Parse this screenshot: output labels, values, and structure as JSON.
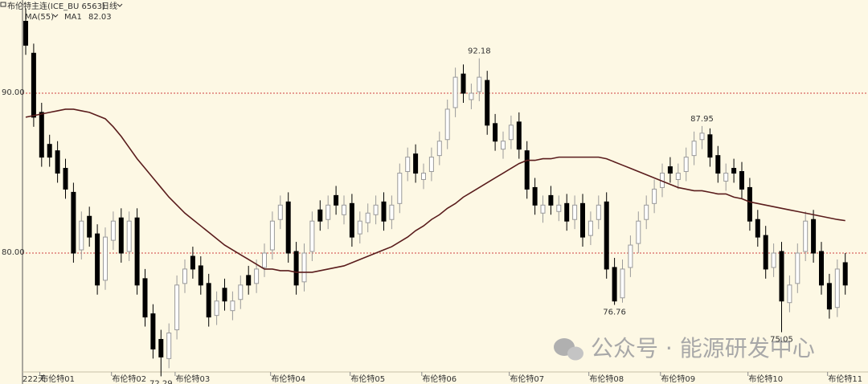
{
  "header": {
    "symbol": "布伦特主连(ICE_BU 6563)",
    "period": "日线",
    "ma_setting": "MA(55)",
    "days_label": "222天"
  },
  "watermark": "公众号 · 能源研发中心",
  "chart_data": {
    "type": "candlestick",
    "categories": [
      null,
      null,
      null,
      null,
      "布伦特01",
      null,
      null,
      null,
      null,
      null,
      null,
      null,
      null,
      "布伦特02",
      null,
      null,
      null,
      null,
      null,
      null,
      null,
      "布伦特03",
      null,
      null,
      null,
      null,
      null,
      null,
      null,
      null,
      null,
      null,
      null,
      "布伦特04",
      null,
      null,
      null,
      null,
      null,
      null,
      null,
      null,
      null,
      "布伦特05",
      null,
      null,
      null,
      null,
      null,
      null,
      null,
      null,
      "布伦特06",
      null,
      null,
      null,
      null,
      null,
      null,
      null,
      null,
      null,
      null,
      "布伦特07",
      null,
      null,
      null,
      null,
      null,
      null,
      null,
      null,
      null,
      "布伦特08",
      null,
      null,
      null,
      null,
      null,
      null,
      null,
      null,
      "布伦特09",
      null,
      null,
      null,
      null,
      null,
      null,
      null,
      null,
      null,
      null,
      "布伦特10",
      null,
      null,
      null,
      null,
      null,
      null,
      null,
      null,
      null,
      "布伦特11"
    ],
    "open": [
      94.5,
      92.5,
      88.8,
      86.8,
      86.4,
      85.3,
      83.8,
      80.2,
      82.3,
      81.2,
      78.3,
      80.8,
      82.2,
      80.1,
      82.2,
      78.4,
      76.2,
      74.6,
      73.4,
      75.2,
      78.1,
      79.8,
      79.2,
      78.1,
      76.1,
      77.8,
      76.4,
      77.1,
      78.6,
      78.1,
      79.1,
      80.2,
      82.1,
      83.2,
      80.1,
      78.2,
      80.1,
      82.7,
      82.1,
      83.6,
      82.4,
      83.1,
      81.2,
      81.9,
      82.4,
      83.2,
      82.1,
      83.1,
      85.1,
      86.2,
      84.6,
      85.1,
      86.1,
      87.1,
      89.1,
      91.2,
      89.6,
      90.1,
      90.8,
      88.1,
      86.5,
      87.1,
      88.2,
      86.4,
      84.1,
      82.5,
      83.6,
      82.6,
      83.1,
      82.1,
      83.1,
      81.1,
      82.1,
      83.2,
      79.1,
      77.2,
      79.1,
      80.6,
      82.1,
      83.1,
      84.1,
      85.4,
      84.6,
      85.1,
      86.1,
      87.1,
      87.4,
      86.1,
      84.5,
      85.3,
      85.1,
      84.1,
      82.1,
      81.1,
      79.1,
      80.1,
      76.9,
      78.1,
      80.1,
      82.1,
      80.1,
      78.1,
      76.6,
      79.4
    ],
    "high": [
      95.3,
      93.1,
      89.4,
      87.4,
      87.0,
      85.9,
      84.4,
      82.6,
      82.9,
      81.8,
      81.6,
      82.6,
      82.8,
      82.6,
      82.8,
      79.0,
      76.8,
      75.2,
      75.6,
      78.6,
      79.6,
      80.4,
      79.8,
      78.7,
      77.6,
      78.4,
      77.6,
      78.6,
      79.2,
      79.6,
      80.6,
      82.6,
      83.6,
      83.8,
      80.7,
      80.6,
      82.6,
      83.3,
      83.6,
      84.2,
      83.6,
      83.7,
      82.6,
      83.1,
      83.6,
      83.8,
      83.6,
      85.6,
      86.6,
      86.8,
      85.6,
      86.6,
      87.6,
      89.6,
      91.6,
      91.8,
      90.6,
      92.18,
      91.4,
      88.7,
      87.6,
      88.6,
      88.8,
      87.0,
      84.7,
      83.6,
      84.2,
      83.6,
      83.7,
      83.6,
      83.7,
      82.6,
      83.6,
      83.8,
      79.7,
      79.6,
      81.1,
      82.6,
      83.6,
      84.6,
      85.6,
      86.0,
      85.6,
      86.6,
      87.6,
      87.95,
      87.8,
      86.7,
      85.6,
      85.9,
      85.7,
      84.7,
      82.7,
      81.7,
      80.6,
      80.7,
      78.6,
      80.6,
      82.6,
      82.7,
      80.7,
      78.7,
      79.6,
      80.0
    ],
    "low": [
      92.4,
      87.9,
      85.4,
      85.4,
      84.4,
      83.4,
      79.4,
      79.6,
      80.4,
      77.4,
      77.7,
      80.2,
      79.4,
      79.5,
      77.4,
      75.4,
      73.4,
      72.29,
      72.8,
      74.6,
      77.5,
      78.4,
      77.4,
      75.4,
      75.5,
      76.4,
      75.8,
      76.5,
      77.4,
      77.5,
      78.5,
      79.6,
      81.5,
      79.4,
      77.4,
      77.6,
      79.5,
      81.4,
      81.5,
      82.4,
      81.8,
      80.4,
      80.6,
      81.3,
      81.8,
      81.4,
      81.5,
      82.5,
      84.5,
      84.4,
      84.0,
      84.5,
      85.5,
      86.5,
      88.5,
      89.4,
      89.0,
      89.5,
      87.4,
      86.4,
      85.9,
      86.5,
      85.9,
      83.4,
      82.4,
      81.9,
      82.4,
      82.0,
      81.4,
      81.5,
      80.4,
      80.5,
      81.5,
      78.4,
      76.76,
      76.9,
      78.5,
      80.0,
      81.5,
      82.5,
      83.5,
      84.4,
      84.0,
      84.5,
      85.5,
      86.5,
      85.4,
      84.4,
      83.9,
      84.4,
      83.4,
      81.4,
      80.4,
      78.4,
      78.5,
      75.05,
      76.3,
      77.5,
      79.5,
      79.4,
      77.4,
      75.9,
      76.0,
      77.4
    ],
    "close": [
      93,
      88.5,
      86,
      86,
      85,
      84,
      80,
      82,
      81,
      78,
      81,
      82,
      80,
      82,
      78,
      76,
      74,
      73.5,
      75,
      78,
      79,
      79,
      78,
      76,
      77,
      77,
      77,
      78,
      78,
      79,
      80,
      82,
      83,
      80,
      78,
      80,
      82,
      82,
      83,
      83,
      83,
      81,
      82,
      82.5,
      83,
      82,
      83,
      85,
      86,
      85,
      85,
      86,
      87,
      89,
      91,
      90,
      90,
      91,
      88,
      87,
      87,
      88,
      86.5,
      84,
      83,
      83,
      83,
      83,
      82,
      83,
      81,
      82,
      83,
      79,
      77,
      79,
      80.5,
      82,
      83,
      84,
      85,
      85,
      85,
      86,
      87,
      87.5,
      86,
      85,
      85,
      85,
      84,
      82,
      81,
      79,
      80,
      77,
      78,
      80,
      82,
      80,
      78,
      76.5,
      79,
      78
    ],
    "up_color": "#9a9a9a",
    "down_color": "#000000",
    "ma": {
      "name": "MA1",
      "color": "#5a1c1c",
      "values": [
        88.5,
        88.6,
        88.7,
        88.8,
        88.9,
        89.0,
        89.0,
        88.9,
        88.8,
        88.6,
        88.4,
        87.9,
        87.3,
        86.6,
        85.9,
        85.3,
        84.7,
        84.1,
        83.5,
        83.0,
        82.5,
        82.1,
        81.7,
        81.3,
        80.9,
        80.5,
        80.2,
        79.9,
        79.6,
        79.3,
        79.0,
        79.0,
        78.9,
        78.9,
        78.8,
        78.8,
        78.8,
        78.9,
        79.0,
        79.1,
        79.2,
        79.4,
        79.6,
        79.8,
        80.0,
        80.2,
        80.4,
        80.7,
        81.0,
        81.4,
        81.7,
        82.1,
        82.4,
        82.8,
        83.1,
        83.5,
        83.8,
        84.1,
        84.4,
        84.7,
        85.0,
        85.3,
        85.6,
        85.8,
        85.8,
        85.9,
        85.9,
        86.0,
        86.0,
        86.0,
        86.0,
        86.0,
        86.0,
        85.9,
        85.7,
        85.5,
        85.3,
        85.1,
        84.9,
        84.7,
        84.5,
        84.3,
        84.1,
        84.0,
        83.9,
        83.9,
        83.8,
        83.7,
        83.7,
        83.5,
        83.4,
        83.2,
        83.1,
        83.0,
        82.9,
        82.8,
        82.7,
        82.6,
        82.5,
        82.4,
        82.3,
        82.2,
        82.1,
        82.03
      ]
    },
    "ylim": [
      71.81,
      95.83
    ],
    "yticks": [
      {
        "value": 90,
        "label": "90.00"
      },
      {
        "value": 80,
        "label": "80.00"
      }
    ],
    "grid": true,
    "grid_color": "#d04040"
  }
}
